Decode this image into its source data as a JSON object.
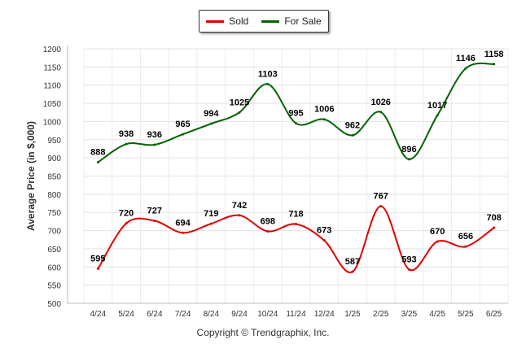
{
  "chart_data": {
    "type": "line",
    "categories": [
      "4/24",
      "5/24",
      "6/24",
      "7/24",
      "8/24",
      "9/24",
      "10/24",
      "11/24",
      "12/24",
      "1/25",
      "2/25",
      "3/25",
      "4/25",
      "5/25",
      "6/25"
    ],
    "series": [
      {
        "name": "Sold",
        "color": "#e00000",
        "values": [
          595,
          720,
          727,
          694,
          719,
          742,
          698,
          718,
          673,
          587,
          767,
          593,
          670,
          656,
          708
        ]
      },
      {
        "name": "For Sale",
        "color": "#006400",
        "values": [
          888,
          938,
          936,
          965,
          994,
          1025,
          1103,
          995,
          1006,
          962,
          1026,
          896,
          1017,
          1146,
          1158
        ]
      }
    ],
    "ylabel": "Average Price (in $,000)",
    "xlabel": "",
    "ylim": [
      500,
      1200
    ],
    "yticks": [
      500,
      550,
      600,
      650,
      700,
      750,
      800,
      850,
      900,
      950,
      1000,
      1050,
      1100,
      1150,
      1200
    ],
    "grid": true,
    "legend_position": "top-center"
  },
  "legend": {
    "sold_label": "Sold",
    "for_sale_label": "For Sale"
  },
  "footer": {
    "copyright": "Copyright © Trendgraphix, Inc."
  }
}
